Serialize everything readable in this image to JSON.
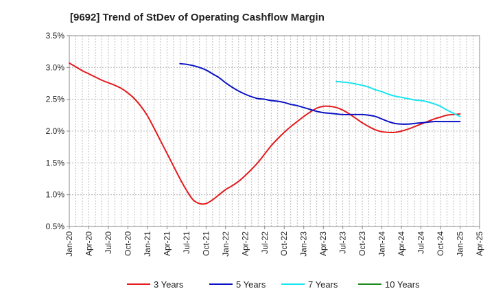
{
  "chart_data": {
    "type": "line",
    "title": "[9692]  Trend of StDev of Operating Cashflow Margin",
    "xlabel": "",
    "ylabel": "",
    "x_ticks": [
      "Jan-20",
      "Apr-20",
      "Jul-20",
      "Oct-20",
      "Jan-21",
      "Apr-21",
      "Jul-21",
      "Oct-21",
      "Jan-22",
      "Apr-22",
      "Jul-22",
      "Oct-22",
      "Jan-23",
      "Apr-23",
      "Jul-23",
      "Oct-23",
      "Jan-24",
      "Apr-24",
      "Jul-24",
      "Oct-24",
      "Jan-25",
      "Apr-25"
    ],
    "y_ticks": [
      "0.5%",
      "1.0%",
      "1.5%",
      "2.0%",
      "2.5%",
      "3.0%",
      "3.5%"
    ],
    "ylim": [
      0.5,
      3.5
    ],
    "y_unit": "%",
    "grid": true,
    "legend_position": "bottom",
    "series": [
      {
        "name": "3 Years",
        "color": "#e41a1c",
        "points": [
          [
            "Jan-20",
            3.07
          ],
          [
            "Feb-20",
            3.01
          ],
          [
            "Mar-20",
            2.95
          ],
          [
            "Apr-20",
            2.9
          ],
          [
            "May-20",
            2.85
          ],
          [
            "Jun-20",
            2.8
          ],
          [
            "Jul-20",
            2.76
          ],
          [
            "Aug-20",
            2.72
          ],
          [
            "Sep-20",
            2.67
          ],
          [
            "Oct-20",
            2.6
          ],
          [
            "Nov-20",
            2.51
          ],
          [
            "Dec-20",
            2.39
          ],
          [
            "Jan-21",
            2.24
          ],
          [
            "Feb-21",
            2.05
          ],
          [
            "Mar-21",
            1.85
          ],
          [
            "Apr-21",
            1.65
          ],
          [
            "May-21",
            1.45
          ],
          [
            "Jun-21",
            1.25
          ],
          [
            "Jul-21",
            1.07
          ],
          [
            "Aug-21",
            0.92
          ],
          [
            "Sep-21",
            0.86
          ],
          [
            "Oct-21",
            0.86
          ],
          [
            "Nov-21",
            0.92
          ],
          [
            "Dec-21",
            1.0
          ],
          [
            "Jan-22",
            1.08
          ],
          [
            "Feb-22",
            1.14
          ],
          [
            "Mar-22",
            1.21
          ],
          [
            "Apr-22",
            1.3
          ],
          [
            "May-22",
            1.4
          ],
          [
            "Jun-22",
            1.51
          ],
          [
            "Jul-22",
            1.64
          ],
          [
            "Aug-22",
            1.77
          ],
          [
            "Sep-22",
            1.88
          ],
          [
            "Oct-22",
            1.98
          ],
          [
            "Nov-22",
            2.07
          ],
          [
            "Dec-22",
            2.15
          ],
          [
            "Jan-23",
            2.23
          ],
          [
            "Feb-23",
            2.3
          ],
          [
            "Mar-23",
            2.36
          ],
          [
            "Apr-23",
            2.39
          ],
          [
            "May-23",
            2.39
          ],
          [
            "Jun-23",
            2.37
          ],
          [
            "Jul-23",
            2.33
          ],
          [
            "Aug-23",
            2.27
          ],
          [
            "Sep-23",
            2.2
          ],
          [
            "Oct-23",
            2.13
          ],
          [
            "Nov-23",
            2.07
          ],
          [
            "Dec-23",
            2.02
          ],
          [
            "Jan-24",
            1.99
          ],
          [
            "Feb-24",
            1.98
          ],
          [
            "Mar-24",
            1.98
          ],
          [
            "Apr-24",
            2.0
          ],
          [
            "May-24",
            2.03
          ],
          [
            "Jun-24",
            2.07
          ],
          [
            "Jul-24",
            2.11
          ],
          [
            "Aug-24",
            2.15
          ],
          [
            "Sep-24",
            2.19
          ],
          [
            "Oct-24",
            2.22
          ],
          [
            "Nov-24",
            2.25
          ],
          [
            "Dec-24",
            2.26
          ],
          [
            "Jan-25",
            2.27
          ]
        ]
      },
      {
        "name": "5 Years",
        "color": "#0a12c4",
        "points": [
          [
            "Jun-21",
            3.06
          ],
          [
            "Jul-21",
            3.05
          ],
          [
            "Aug-21",
            3.03
          ],
          [
            "Sep-21",
            3.0
          ],
          [
            "Oct-21",
            2.96
          ],
          [
            "Nov-21",
            2.9
          ],
          [
            "Dec-21",
            2.84
          ],
          [
            "Jan-22",
            2.76
          ],
          [
            "Feb-22",
            2.69
          ],
          [
            "Mar-22",
            2.63
          ],
          [
            "Apr-22",
            2.58
          ],
          [
            "May-22",
            2.54
          ],
          [
            "Jun-22",
            2.51
          ],
          [
            "Jul-22",
            2.5
          ],
          [
            "Aug-22",
            2.48
          ],
          [
            "Sep-22",
            2.47
          ],
          [
            "Oct-22",
            2.45
          ],
          [
            "Nov-22",
            2.42
          ],
          [
            "Dec-22",
            2.4
          ],
          [
            "Jan-23",
            2.37
          ],
          [
            "Feb-23",
            2.34
          ],
          [
            "Mar-23",
            2.31
          ],
          [
            "Apr-23",
            2.29
          ],
          [
            "May-23",
            2.28
          ],
          [
            "Jun-23",
            2.27
          ],
          [
            "Jul-23",
            2.26
          ],
          [
            "Aug-23",
            2.26
          ],
          [
            "Sep-23",
            2.26
          ],
          [
            "Oct-23",
            2.26
          ],
          [
            "Nov-23",
            2.25
          ],
          [
            "Dec-23",
            2.23
          ],
          [
            "Jan-24",
            2.19
          ],
          [
            "Feb-24",
            2.15
          ],
          [
            "Mar-24",
            2.12
          ],
          [
            "Apr-24",
            2.11
          ],
          [
            "May-24",
            2.11
          ],
          [
            "Jun-24",
            2.12
          ],
          [
            "Jul-24",
            2.13
          ],
          [
            "Aug-24",
            2.14
          ],
          [
            "Sep-24",
            2.15
          ],
          [
            "Oct-24",
            2.15
          ],
          [
            "Nov-24",
            2.15
          ],
          [
            "Dec-24",
            2.15
          ],
          [
            "Jan-25",
            2.15
          ]
        ]
      },
      {
        "name": "7 Years",
        "color": "#19e5ef",
        "points": [
          [
            "Jun-23",
            2.78
          ],
          [
            "Jul-23",
            2.77
          ],
          [
            "Aug-23",
            2.76
          ],
          [
            "Sep-23",
            2.74
          ],
          [
            "Oct-23",
            2.72
          ],
          [
            "Nov-23",
            2.69
          ],
          [
            "Dec-23",
            2.65
          ],
          [
            "Jan-24",
            2.62
          ],
          [
            "Feb-24",
            2.58
          ],
          [
            "Mar-24",
            2.55
          ],
          [
            "Apr-24",
            2.53
          ],
          [
            "May-24",
            2.51
          ],
          [
            "Jun-24",
            2.49
          ],
          [
            "Jul-24",
            2.48
          ],
          [
            "Aug-24",
            2.46
          ],
          [
            "Sep-24",
            2.43
          ],
          [
            "Oct-24",
            2.39
          ],
          [
            "Nov-24",
            2.33
          ],
          [
            "Dec-24",
            2.28
          ],
          [
            "Jan-25",
            2.23
          ]
        ]
      },
      {
        "name": "10 Years",
        "color": "#1a8a1a",
        "points": []
      }
    ]
  }
}
